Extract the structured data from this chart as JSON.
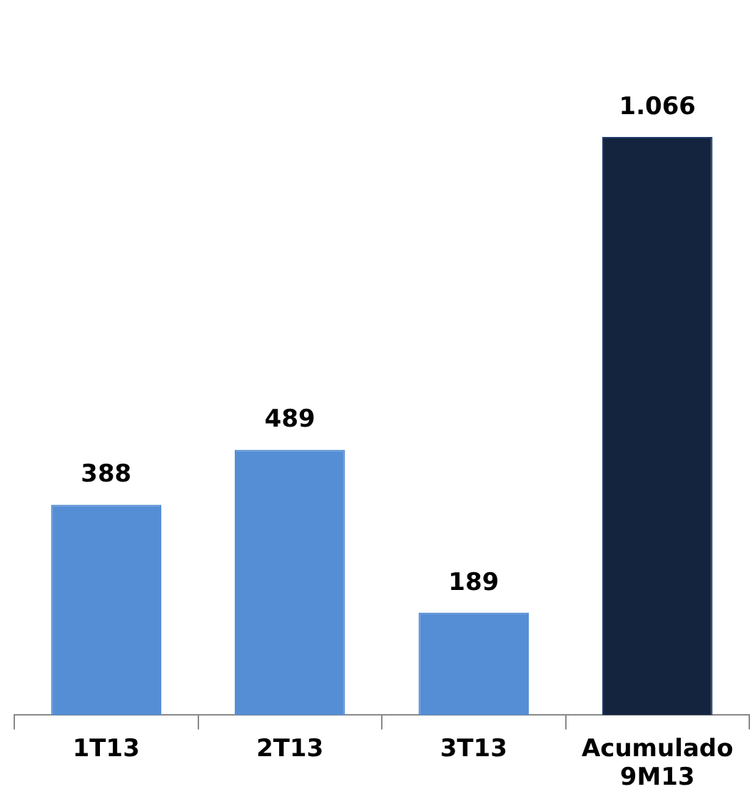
{
  "chart_data": {
    "type": "bar",
    "categories": [
      "1T13",
      "2T13",
      "3T13",
      "Acumulado 9M13"
    ],
    "values": [
      388,
      489,
      189,
      1066
    ],
    "colors": [
      "#558ed5",
      "#558ed5",
      "#558ed5",
      "#14243f"
    ],
    "value_labels": [
      "388",
      "489",
      "189",
      "1.066"
    ]
  }
}
